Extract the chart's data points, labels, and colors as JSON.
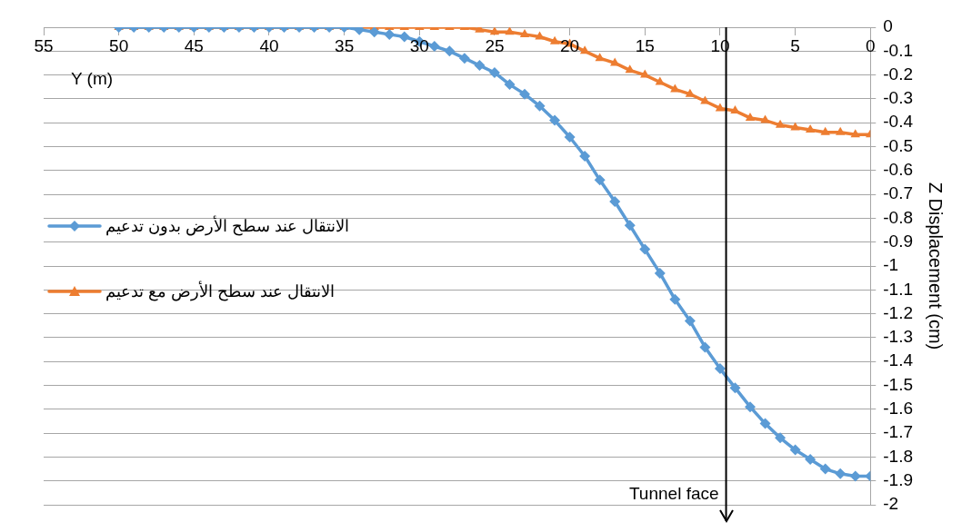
{
  "chart_data": {
    "type": "line",
    "xlabel": "Y (m)",
    "ylabel": "Z Displacement (cm)",
    "x": [
      50,
      49,
      48,
      47,
      46,
      45,
      44,
      43,
      42,
      41,
      40,
      39,
      38,
      37,
      36,
      35,
      34,
      33,
      32,
      31,
      30,
      29,
      28,
      27,
      26,
      25,
      24,
      23,
      22,
      21,
      20,
      19,
      18,
      17,
      16,
      15,
      14,
      13,
      12,
      11,
      10,
      9,
      8,
      7,
      6,
      5,
      4,
      3,
      2,
      1,
      0
    ],
    "series": [
      {
        "name": "الانتقال عند سطح الأرض بدون تدعيم",
        "color": "#5b9bd5",
        "marker": "diamond",
        "values": [
          0,
          0,
          0,
          0,
          0,
          0,
          0,
          0,
          0,
          0,
          0,
          0,
          0,
          0,
          0,
          0,
          -0.01,
          -0.02,
          -0.03,
          -0.04,
          -0.06,
          -0.08,
          -0.1,
          -0.13,
          -0.16,
          -0.19,
          -0.24,
          -0.28,
          -0.33,
          -0.39,
          -0.46,
          -0.54,
          -0.64,
          -0.73,
          -0.83,
          -0.93,
          -1.03,
          -1.14,
          -1.23,
          -1.34,
          -1.43,
          -1.51,
          -1.59,
          -1.66,
          -1.72,
          -1.77,
          -1.81,
          -1.85,
          -1.87,
          -1.88,
          -1.88
        ]
      },
      {
        "name": "الانتقال عند سطح الأرض مع تدعيم",
        "color": "#ed7d31",
        "marker": "triangle",
        "values": [
          0,
          0,
          0,
          0,
          0,
          0,
          0,
          0,
          0,
          0,
          0,
          0,
          0,
          0,
          0,
          0,
          0,
          0,
          0,
          0,
          0,
          0,
          0,
          0,
          -0.01,
          -0.02,
          -0.02,
          -0.03,
          -0.04,
          -0.06,
          -0.07,
          -0.1,
          -0.13,
          -0.15,
          -0.18,
          -0.2,
          -0.23,
          -0.26,
          -0.28,
          -0.31,
          -0.34,
          -0.35,
          -0.38,
          -0.39,
          -0.41,
          -0.42,
          -0.43,
          -0.44,
          -0.44,
          -0.45,
          -0.45
        ]
      }
    ],
    "xlim": [
      55,
      0
    ],
    "xticks": [
      55,
      50,
      45,
      40,
      35,
      30,
      25,
      20,
      15,
      10,
      5,
      0
    ],
    "ylim": [
      -2,
      0
    ],
    "yticks": [
      0,
      -0.1,
      -0.2,
      -0.3,
      -0.4,
      -0.5,
      -0.6,
      -0.7,
      -0.8,
      -0.9,
      -1,
      -1.1,
      -1.2,
      -1.3,
      -1.4,
      -1.5,
      -1.6,
      -1.7,
      -1.8,
      -1.9,
      -2
    ],
    "ref_lines": [
      {
        "axis": "x",
        "value": 9.6,
        "label": "Tunnel face",
        "color": "#000000"
      }
    ],
    "grid": "y",
    "legend": "left",
    "line_style": "solid"
  }
}
